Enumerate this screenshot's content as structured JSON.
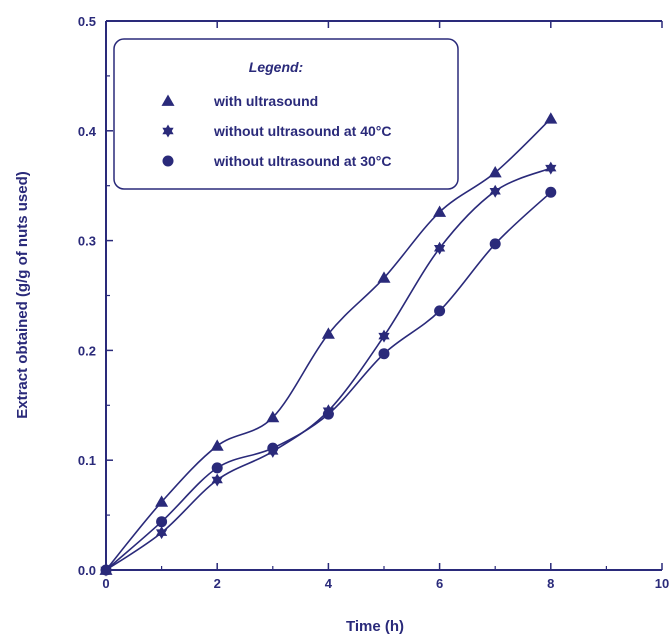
{
  "chart_data": {
    "type": "line",
    "title": "",
    "xlabel": "Time (h)",
    "ylabel": "Extract obtained (g/g of nuts used)",
    "xlim": [
      0,
      10
    ],
    "ylim": [
      0,
      0.5
    ],
    "xticks": [
      0,
      2,
      4,
      6,
      8,
      10
    ],
    "yticks": [
      0.0,
      0.1,
      0.2,
      0.3,
      0.4,
      0.5
    ],
    "xtick_labels": [
      "0",
      "2",
      "4",
      "6",
      "8",
      "10"
    ],
    "ytick_labels": [
      "0.0",
      "0.1",
      "0.2",
      "0.3",
      "0.4",
      "0.5"
    ],
    "grid": false,
    "legend": {
      "title": "Legend:",
      "position": "top-left"
    },
    "x": [
      0,
      1,
      2,
      3,
      4,
      5,
      6,
      7,
      8
    ],
    "series": [
      {
        "name": "with ultrasound",
        "marker": "triangle",
        "values": [
          0.0,
          0.062,
          0.113,
          0.139,
          0.215,
          0.266,
          0.326,
          0.362,
          0.411
        ]
      },
      {
        "name": "without ultrasound at 40°C",
        "marker": "star",
        "values": [
          0.0,
          0.034,
          0.082,
          0.108,
          0.145,
          0.213,
          0.293,
          0.345,
          0.366
        ]
      },
      {
        "name": "without ultrasound at 30°C",
        "marker": "circle",
        "values": [
          0.0,
          0.044,
          0.093,
          0.111,
          0.142,
          0.197,
          0.236,
          0.297,
          0.344
        ]
      }
    ]
  },
  "colors": {
    "axis": "#2a2a7a",
    "series": "#2a2a7a",
    "frame": "#2a2a7a"
  }
}
